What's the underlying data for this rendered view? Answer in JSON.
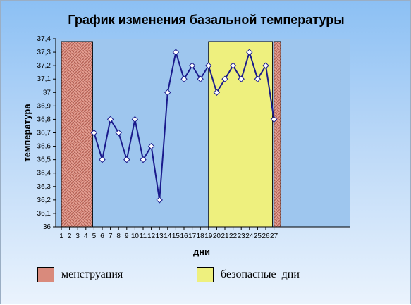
{
  "chart_data": {
    "type": "line",
    "title": "График изменения базальной температуры",
    "xlabel": "дни",
    "ylabel": "температура",
    "x": [
      1,
      2,
      3,
      4,
      5,
      6,
      7,
      8,
      9,
      10,
      11,
      12,
      13,
      14,
      15,
      16,
      17,
      18,
      19,
      20,
      21,
      22,
      23,
      24,
      25,
      26,
      27
    ],
    "x_tick_labels": [
      "1",
      "2",
      "3",
      "4",
      "5",
      "6",
      "7",
      "8",
      "9",
      "10",
      "11",
      "12",
      "13",
      "14",
      "15",
      "16",
      "17",
      "18",
      "19",
      "20",
      "21",
      "22",
      "23",
      "24",
      "25",
      "26",
      "27"
    ],
    "series": [
      {
        "x": [
          5,
          6,
          7,
          8,
          9,
          10,
          11,
          12,
          13,
          14,
          15,
          16,
          17,
          18,
          19,
          20,
          21,
          22,
          23,
          24,
          25,
          26,
          27
        ],
        "values": [
          36.7,
          36.5,
          36.8,
          36.7,
          36.5,
          36.8,
          36.5,
          36.6,
          36.2,
          37.0,
          37.3,
          37.1,
          37.2,
          37.1,
          37.2,
          37.0,
          37.1,
          37.2,
          37.1,
          37.3,
          37.1,
          37.2,
          36.8
        ]
      }
    ],
    "ylim": [
      36,
      37.4
    ],
    "y_ticks": [
      "36",
      "36,1",
      "36,2",
      "36,3",
      "36,4",
      "36,5",
      "36,6",
      "36,7",
      "36,8",
      "36,9",
      "37",
      "37,1",
      "37,2",
      "37,3",
      "37,4"
    ],
    "bands": [
      {
        "type": "menstruation",
        "from_day": 1,
        "to_day": 4
      },
      {
        "type": "safe",
        "from_day": 19,
        "to_day": 26
      },
      {
        "type": "menstruation",
        "from_day": 27,
        "to_day": 27
      }
    ],
    "grid": false,
    "legend": [
      {
        "key": "menstruation",
        "label": "менструация",
        "color": "#d98a7c"
      },
      {
        "key": "safe",
        "label": "безопасные  дни",
        "color": "#eef07e"
      }
    ],
    "colors": {
      "line": "#1a1a8c",
      "plot_area": "#9ec6ee"
    }
  }
}
